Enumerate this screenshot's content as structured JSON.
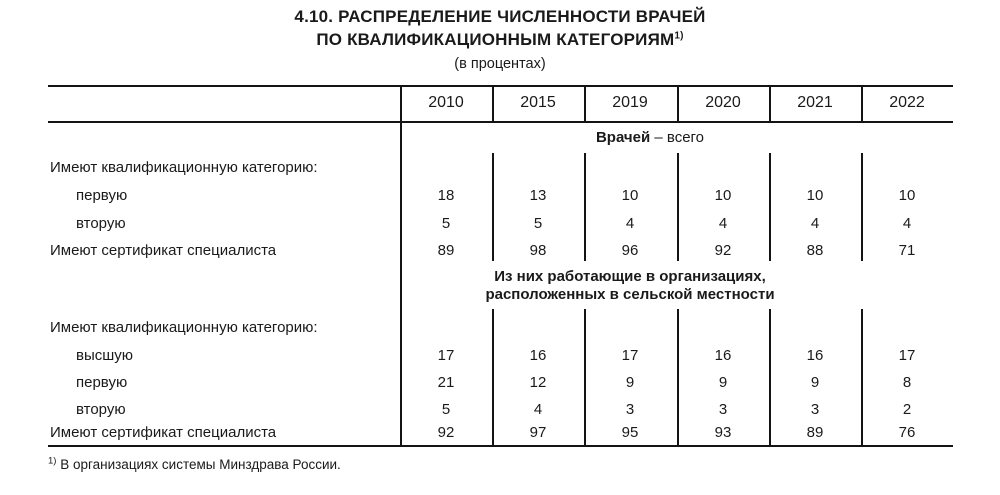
{
  "title": {
    "line1": "4.10. РАСПРЕДЕЛЕНИЕ ЧИСЛЕННОСТИ ВРАЧЕЙ",
    "line2": "ПО КВАЛИФИКАЦИОННЫМ КАТЕГОРИЯМ",
    "footnote_marker": "1)",
    "subtitle": "(в процентах)"
  },
  "table": {
    "years": [
      "2010",
      "2015",
      "2019",
      "2020",
      "2021",
      "2022"
    ],
    "sections": [
      {
        "header_bold": "Врачей",
        "header_rest": "– всего",
        "rows": [
          {
            "label": "Имеют квалификационную категорию:",
            "values": []
          },
          {
            "label": "первую",
            "values": [
              "18",
              "13",
              "10",
              "10",
              "10",
              "10"
            ]
          },
          {
            "label": "вторую",
            "values": [
              "5",
              "5",
              "4",
              "4",
              "4",
              "4"
            ]
          },
          {
            "label": "Имеют сертификат специалиста",
            "values": [
              "89",
              "98",
              "96",
              "92",
              "88",
              "71"
            ]
          }
        ]
      },
      {
        "header_line1": "Из них работающие в организациях,",
        "header_line2": "расположенных в сельской местности",
        "rows": [
          {
            "label": "Имеют квалификационную категорию:",
            "values": []
          },
          {
            "label": "высшую",
            "values": [
              "17",
              "16",
              "17",
              "16",
              "16",
              "17"
            ]
          },
          {
            "label": "первую",
            "values": [
              "21",
              "12",
              "9",
              "9",
              "9",
              "8"
            ]
          },
          {
            "label": "вторую",
            "values": [
              "5",
              "4",
              "3",
              "3",
              "3",
              "2"
            ]
          },
          {
            "label": "Имеют сертификат специалиста",
            "values": [
              "92",
              "97",
              "95",
              "93",
              "89",
              "76"
            ]
          }
        ]
      }
    ]
  },
  "footnote": {
    "marker": "1)",
    "text": "В организациях системы Минздрава России."
  },
  "colors": {
    "text": "#1a1a1a",
    "rule": "#141414",
    "background": "#ffffff"
  }
}
